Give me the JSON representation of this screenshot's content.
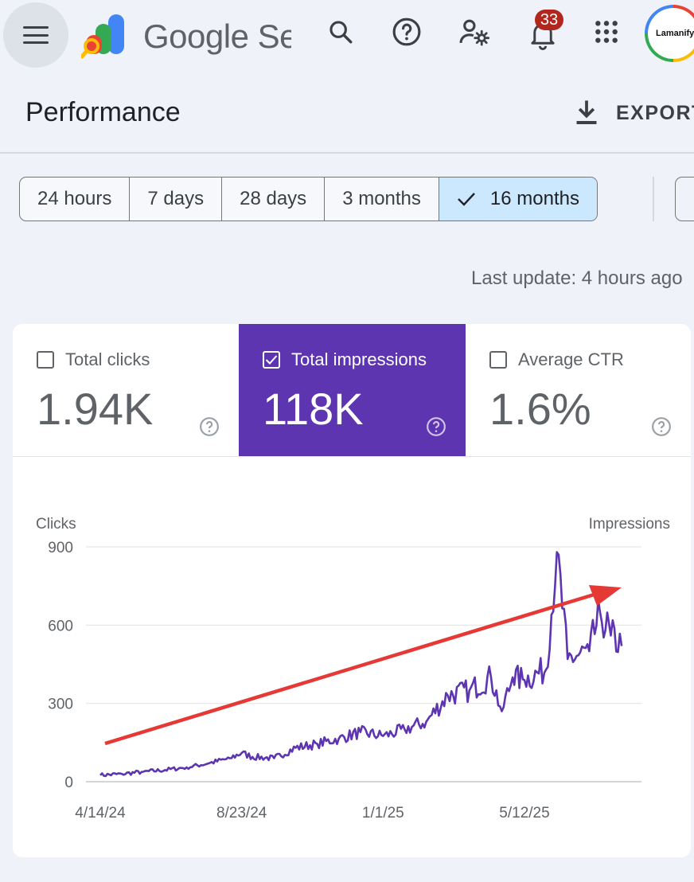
{
  "header": {
    "brand": "Google Search Console",
    "notification_count": "33",
    "avatar_text": "Lamanify.",
    "icons": [
      "menu-icon",
      "search-icon",
      "help-icon",
      "manage-users-icon",
      "bell-icon",
      "apps-grid-icon"
    ]
  },
  "page": {
    "title": "Performance",
    "export_label": "EXPORT",
    "last_update": "Last update: 4 hours ago"
  },
  "date_range": {
    "options": [
      "24 hours",
      "7 days",
      "28 days",
      "3 months",
      "16 months"
    ],
    "selected": "16 months"
  },
  "metrics": [
    {
      "label": "Total clicks",
      "value": "1.94K",
      "checked": false
    },
    {
      "label": "Total impressions",
      "value": "118K",
      "checked": true
    },
    {
      "label": "Average CTR",
      "value": "1.6%",
      "checked": false
    }
  ],
  "colors": {
    "impressions_series": "#5e35b1",
    "annotation_arrow": "#e53935",
    "selected_chip": "#cbe8ff",
    "badge": "#b3261e"
  },
  "chart_data": {
    "type": "line",
    "left_axis_label": "Clicks",
    "right_axis_label": "Impressions",
    "y_ticks": [
      "900",
      "600",
      "300",
      "0"
    ],
    "x_ticks": [
      "4/14/24",
      "8/23/24",
      "1/1/25",
      "5/12/25"
    ],
    "ylim": [
      0,
      900
    ],
    "grid": true,
    "series": [
      {
        "points": [
          [
            "4/14/24",
            25
          ],
          [
            "5/4/24",
            30
          ],
          [
            "5/24/24",
            38
          ],
          [
            "6/13/24",
            45
          ],
          [
            "7/3/24",
            55
          ],
          [
            "7/23/24",
            70
          ],
          [
            "8/12/24",
            90
          ],
          [
            "8/23/24",
            110
          ],
          [
            "9/2/24",
            95
          ],
          [
            "9/22/24",
            90
          ],
          [
            "10/12/24",
            130
          ],
          [
            "11/1/24",
            145
          ],
          [
            "11/21/24",
            165
          ],
          [
            "12/11/24",
            190
          ],
          [
            "1/1/25",
            175
          ],
          [
            "1/21/25",
            200
          ],
          [
            "2/10/25",
            230
          ],
          [
            "3/2/25",
            330
          ],
          [
            "3/22/25",
            350
          ],
          [
            "4/11/25",
            400
          ],
          [
            "4/21/25",
            270
          ],
          [
            "5/1/25",
            400
          ],
          [
            "5/12/25",
            390
          ],
          [
            "6/1/25",
            430
          ],
          [
            "6/11/25",
            880
          ],
          [
            "6/21/25",
            470
          ],
          [
            "7/11/25",
            500
          ],
          [
            "7/21/25",
            650
          ],
          [
            "7/31/25",
            560
          ],
          [
            "8/10/25",
            520
          ]
        ]
      }
    ]
  }
}
